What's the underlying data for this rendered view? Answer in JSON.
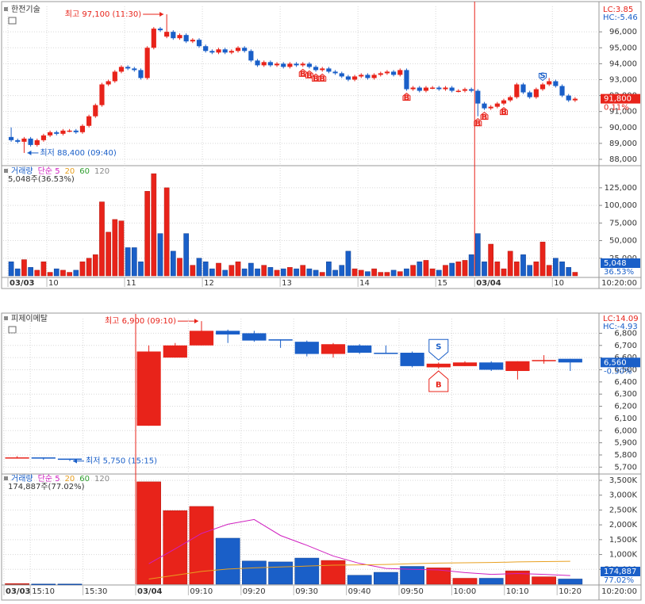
{
  "chart_data": [
    {
      "type": "candlestick",
      "title": "한전기술",
      "lc": "LC:3.85",
      "hc": "HC:-5.46",
      "high_note": "최고 97,100 (11:30)",
      "low_note": "최저 88,400 (09:40)",
      "colors": {
        "up": "#e8231a",
        "down": "#1a5fc8"
      },
      "ylim": [
        87700,
        97600
      ],
      "yticks": [
        {
          "value": 88000,
          "label": "88,000"
        },
        {
          "value": 89000,
          "label": "89,000"
        },
        {
          "value": 90000,
          "label": "90,000"
        },
        {
          "value": 91000,
          "label": "91,000"
        },
        {
          "value": 92000,
          "label": "92,000"
        },
        {
          "value": 93000,
          "label": "93,000"
        },
        {
          "value": 94000,
          "label": "94,000"
        },
        {
          "value": 95000,
          "label": "95,000"
        },
        {
          "value": 96000,
          "label": "96,000"
        }
      ],
      "grid": true,
      "last": {
        "value": 91800,
        "label": "91,800",
        "change": "0.11%",
        "color": "#e8231a"
      },
      "open": [
        89400,
        89200,
        89100,
        89300,
        88900,
        89200,
        89500,
        89700,
        89600,
        89800,
        89800,
        89700,
        90100,
        90700,
        91400,
        92700,
        92900,
        93500,
        93800,
        93700,
        93600,
        93100,
        95000,
        96200,
        95700,
        96000,
        95600,
        95800,
        95400,
        95500,
        95100,
        94800,
        94700,
        94900,
        94700,
        94800,
        95000,
        94800,
        94200,
        93900,
        94100,
        93900,
        94000,
        93800,
        94000,
        93900,
        94000,
        93800,
        93600,
        93700,
        93500,
        93400,
        93200,
        93000,
        93200,
        93300,
        93100,
        93300,
        93400,
        93500,
        93300,
        93600,
        92400,
        92500,
        92300,
        92500,
        92500,
        92400,
        92500,
        92300,
        92300,
        92400,
        92300,
        91500,
        91200,
        91300,
        91500,
        91700,
        91900,
        92700,
        92200,
        91900,
        92400,
        92700,
        92900,
        92600,
        92000,
        91700
      ],
      "high": [
        90000,
        89300,
        89400,
        89400,
        89300,
        89600,
        89800,
        89800,
        89900,
        89900,
        89900,
        90200,
        90800,
        91500,
        92800,
        93000,
        93600,
        93900,
        93900,
        93800,
        93700,
        95100,
        96300,
        96300,
        97100,
        96100,
        95900,
        95900,
        95600,
        95600,
        95200,
        94900,
        95000,
        95000,
        94900,
        95100,
        95100,
        94900,
        94300,
        94200,
        94200,
        94100,
        94100,
        94100,
        94100,
        94100,
        94100,
        93900,
        93800,
        93800,
        93600,
        93500,
        93300,
        93300,
        93400,
        93400,
        93400,
        93500,
        93600,
        93600,
        93700,
        93700,
        92600,
        92600,
        92600,
        92600,
        92600,
        92600,
        92600,
        92400,
        92500,
        92500,
        92400,
        91600,
        91400,
        91600,
        91800,
        92000,
        92800,
        92800,
        92300,
        92500,
        92800,
        93100,
        93000,
        92700,
        92100,
        91900
      ],
      "low": [
        89100,
        89000,
        88400,
        88800,
        88800,
        89100,
        89400,
        89500,
        89500,
        89700,
        89600,
        89600,
        90000,
        90600,
        91300,
        92600,
        92800,
        93400,
        93600,
        93500,
        93000,
        93000,
        94900,
        96000,
        95600,
        95500,
        95500,
        95300,
        95300,
        95000,
        94700,
        94600,
        94600,
        94600,
        94600,
        94700,
        94700,
        94100,
        93800,
        93800,
        93800,
        93800,
        93700,
        93700,
        93800,
        93800,
        93700,
        93500,
        93500,
        93400,
        93300,
        93100,
        92900,
        92900,
        93100,
        93000,
        93000,
        93200,
        93300,
        93200,
        93200,
        92300,
        92300,
        92200,
        92200,
        92400,
        92300,
        92300,
        92200,
        92200,
        92200,
        92200,
        90700,
        91100,
        91100,
        91200,
        91400,
        91600,
        91800,
        92100,
        91800,
        91800,
        92300,
        92600,
        92500,
        91900,
        91600,
        91600
      ],
      "close": [
        89200,
        89100,
        89300,
        88900,
        89200,
        89500,
        89700,
        89600,
        89800,
        89800,
        89700,
        90100,
        90700,
        91400,
        92700,
        92900,
        93500,
        93800,
        93700,
        93600,
        93100,
        95000,
        96200,
        96100,
        96000,
        95600,
        95800,
        95400,
        95500,
        95100,
        94800,
        94700,
        94900,
        94700,
        94800,
        95000,
        94800,
        94200,
        93900,
        94100,
        93900,
        94000,
        93800,
        94000,
        93900,
        94000,
        93800,
        93600,
        93700,
        93500,
        93400,
        93200,
        93000,
        93200,
        93300,
        93100,
        93300,
        93400,
        93500,
        93300,
        93600,
        92400,
        92500,
        92300,
        92500,
        92500,
        92400,
        92500,
        92300,
        92300,
        92400,
        92300,
        91500,
        91200,
        91300,
        91500,
        91700,
        91900,
        92700,
        92200,
        91900,
        92400,
        92700,
        92900,
        92600,
        92000,
        91700,
        91800
      ],
      "signals": [
        null,
        null,
        null,
        null,
        null,
        null,
        null,
        null,
        null,
        null,
        null,
        null,
        null,
        null,
        null,
        null,
        null,
        null,
        null,
        null,
        null,
        null,
        null,
        null,
        null,
        null,
        null,
        null,
        null,
        null,
        null,
        null,
        null,
        null,
        null,
        null,
        null,
        null,
        null,
        null,
        null,
        null,
        null,
        null,
        null,
        [
          "B"
        ],
        [
          "B"
        ],
        [
          "B"
        ],
        [
          "B"
        ],
        null,
        null,
        null,
        null,
        null,
        null,
        null,
        null,
        null,
        null,
        null,
        null,
        [
          "B"
        ],
        null,
        null,
        null,
        null,
        null,
        null,
        null,
        null,
        null,
        null,
        [
          "B"
        ],
        [
          "B"
        ],
        null,
        null,
        [
          "B"
        ],
        null,
        null,
        null,
        null,
        null,
        [
          "S"
        ],
        null,
        null,
        null,
        null,
        null
      ]
    },
    {
      "type": "bar",
      "legend": [
        {
          "label": "거래량",
          "color": "#1a5fc8"
        },
        {
          "label": "단순 5",
          "color": "#d020c0"
        },
        {
          "label": "20",
          "color": "#e8a020"
        },
        {
          "label": "60",
          "color": "#2e9e2e"
        },
        {
          "label": "120",
          "color": "#888888"
        }
      ],
      "note": "5,048주(36.53%)",
      "time": "10:20:00",
      "ylim": [
        0,
        153000
      ],
      "yticks": [
        {
          "value": 25000,
          "label": "25,000"
        },
        {
          "value": 50000,
          "label": "50,000"
        },
        {
          "value": 75000,
          "label": "75,000"
        },
        {
          "value": 100000,
          "label": "100,000"
        },
        {
          "value": 125000,
          "label": "125,000"
        }
      ],
      "grid": true,
      "last": {
        "value": 5048,
        "label": "5,048",
        "change": "36.53%",
        "color": "#1a5fc8"
      },
      "categories": [
        "03/03",
        null,
        null,
        null,
        null,
        null,
        "10",
        null,
        null,
        null,
        null,
        null,
        null,
        null,
        null,
        null,
        null,
        null,
        "11",
        null,
        null,
        null,
        null,
        null,
        null,
        null,
        null,
        null,
        null,
        null,
        "12",
        null,
        null,
        null,
        null,
        null,
        null,
        null,
        null,
        null,
        null,
        null,
        "13",
        null,
        null,
        null,
        null,
        null,
        null,
        null,
        null,
        null,
        null,
        null,
        "14",
        null,
        null,
        null,
        null,
        null,
        null,
        null,
        null,
        null,
        null,
        null,
        "15",
        null,
        null,
        null,
        null,
        null,
        "03/04",
        null,
        null,
        null,
        null,
        null,
        null,
        null,
        null,
        null,
        null,
        null,
        "10",
        null,
        null,
        null
      ],
      "values": [
        20000,
        10000,
        23000,
        12000,
        8000,
        20000,
        5000,
        10000,
        8000,
        5000,
        8000,
        20000,
        25000,
        30000,
        105000,
        62000,
        80000,
        78000,
        40000,
        40000,
        20000,
        120000,
        145000,
        60000,
        125000,
        35000,
        25000,
        60000,
        15000,
        25000,
        20000,
        10000,
        18000,
        8000,
        15000,
        20000,
        10000,
        18000,
        10000,
        15000,
        12000,
        8000,
        10000,
        12000,
        10000,
        15000,
        10000,
        8000,
        5000,
        20000,
        8000,
        15000,
        35000,
        10000,
        8000,
        6000,
        10000,
        5000,
        5000,
        8000,
        6000,
        10000,
        15000,
        20000,
        22000,
        10000,
        8000,
        15000,
        18000,
        20000,
        22000,
        30000,
        60000,
        20000,
        45000,
        20000,
        10000,
        35000,
        20000,
        30000,
        15000,
        20000,
        48000,
        15000,
        25000,
        20000,
        12000,
        5048
      ]
    },
    {
      "type": "candlestick",
      "title": "피제이메탈",
      "lc": "LC:14.09",
      "hc": "HC:-4.93",
      "high_note": "최고 6,900 (09:10)",
      "low_note": "최저 5,750 (15:15)",
      "colors": {
        "up": "#e8231a",
        "down": "#1a5fc8"
      },
      "ylim": [
        5650,
        6920
      ],
      "yticks": [
        {
          "value": 5700,
          "label": "5,700"
        },
        {
          "value": 5800,
          "label": "5,800"
        },
        {
          "value": 5900,
          "label": "5,900"
        },
        {
          "value": 6000,
          "label": "6,000"
        },
        {
          "value": 6100,
          "label": "6,100"
        },
        {
          "value": 6200,
          "label": "6,200"
        },
        {
          "value": 6300,
          "label": "6,300"
        },
        {
          "value": 6400,
          "label": "6,400"
        },
        {
          "value": 6500,
          "label": "6,500"
        },
        {
          "value": 6600,
          "label": "6,600"
        },
        {
          "value": 6700,
          "label": "6,700"
        },
        {
          "value": 6800,
          "label": "6,800"
        }
      ],
      "grid": true,
      "last": {
        "value": 6560,
        "label": "6,560",
        "change": "-0.30%",
        "color": "#1a5fc8"
      },
      "open": [
        5780,
        5780,
        5770,
        null,
        null,
        6040,
        6600,
        6700,
        6820,
        6800,
        6750,
        6730,
        6630,
        6700,
        6640,
        6640,
        6520,
        6530,
        6560,
        6490,
        6580,
        6590
      ],
      "high": [
        5790,
        5780,
        5770,
        null,
        null,
        6700,
        6720,
        6900,
        6830,
        6820,
        6750,
        6740,
        6720,
        6710,
        6700,
        6650,
        6560,
        6570,
        6570,
        6570,
        6620,
        6590
      ],
      "low": [
        5770,
        5760,
        5750,
        null,
        null,
        6040,
        6600,
        6700,
        6720,
        6730,
        6680,
        6610,
        6600,
        6630,
        6630,
        6520,
        6510,
        6530,
        6490,
        6420,
        6550,
        6490
      ],
      "close": [
        5780,
        5770,
        5760,
        null,
        null,
        6650,
        6700,
        6820,
        6790,
        6740,
        6740,
        6630,
        6710,
        6640,
        6630,
        6530,
        6550,
        6560,
        6500,
        6570,
        6580,
        6560
      ],
      "signals": [
        null,
        null,
        null,
        null,
        null,
        null,
        null,
        null,
        null,
        null,
        null,
        null,
        null,
        null,
        null,
        null,
        [
          "S",
          "B"
        ],
        null,
        null,
        null,
        null,
        null
      ]
    },
    {
      "type": "bar",
      "legend": [
        {
          "label": "거래량",
          "color": "#1a5fc8"
        },
        {
          "label": "단순 5",
          "color": "#d020c0"
        },
        {
          "label": "20",
          "color": "#e8a020"
        },
        {
          "label": "60",
          "color": "#2e9e2e"
        },
        {
          "label": "120",
          "color": "#888888"
        }
      ],
      "note": "174,887주(77.02%)",
      "time": "10:20:00",
      "ylim": [
        0,
        3660000
      ],
      "yticks": [
        {
          "value": 500000,
          "label": "500,000"
        },
        {
          "value": 1000000,
          "label": "1,000K"
        },
        {
          "value": 1500000,
          "label": "1,500K"
        },
        {
          "value": 2000000,
          "label": "2,000K"
        },
        {
          "value": 2500000,
          "label": "2,500K"
        },
        {
          "value": 3000000,
          "label": "3,000K"
        },
        {
          "value": 3500000,
          "label": "3,500K"
        }
      ],
      "grid": true,
      "last": {
        "value": 174887,
        "label": "174,887",
        "change": "77.02%",
        "color": "#1a5fc8"
      },
      "categories": [
        "03/03",
        "15:10",
        null,
        "15:30",
        null,
        "03/04",
        null,
        "09:10",
        null,
        "09:20",
        null,
        "09:30",
        null,
        "09:40",
        null,
        "09:50",
        null,
        "10:00",
        null,
        "10:10",
        null,
        "10:20"
      ],
      "values": [
        20000,
        5000,
        5000,
        null,
        null,
        3450000,
        2480000,
        2620000,
        1550000,
        780000,
        750000,
        880000,
        800000,
        300000,
        400000,
        600000,
        550000,
        200000,
        200000,
        450000,
        250000,
        174887
      ],
      "series": [
        {
          "color": "#d020c0",
          "values": [
            null,
            null,
            null,
            null,
            null,
            690000,
            1190000,
            1710000,
            2020000,
            2180000,
            1640000,
            1310000,
            950000,
            700000,
            530000,
            500000,
            480000,
            390000,
            330000,
            360000,
            330000,
            290000
          ]
        },
        {
          "color": "#e8a020",
          "values": [
            null,
            null,
            null,
            null,
            null,
            175000,
            300000,
            430000,
            510000,
            550000,
            580000,
            610000,
            640000,
            650000,
            665000,
            690000,
            710000,
            720000,
            730000,
            750000,
            760000,
            770000
          ]
        }
      ]
    }
  ]
}
